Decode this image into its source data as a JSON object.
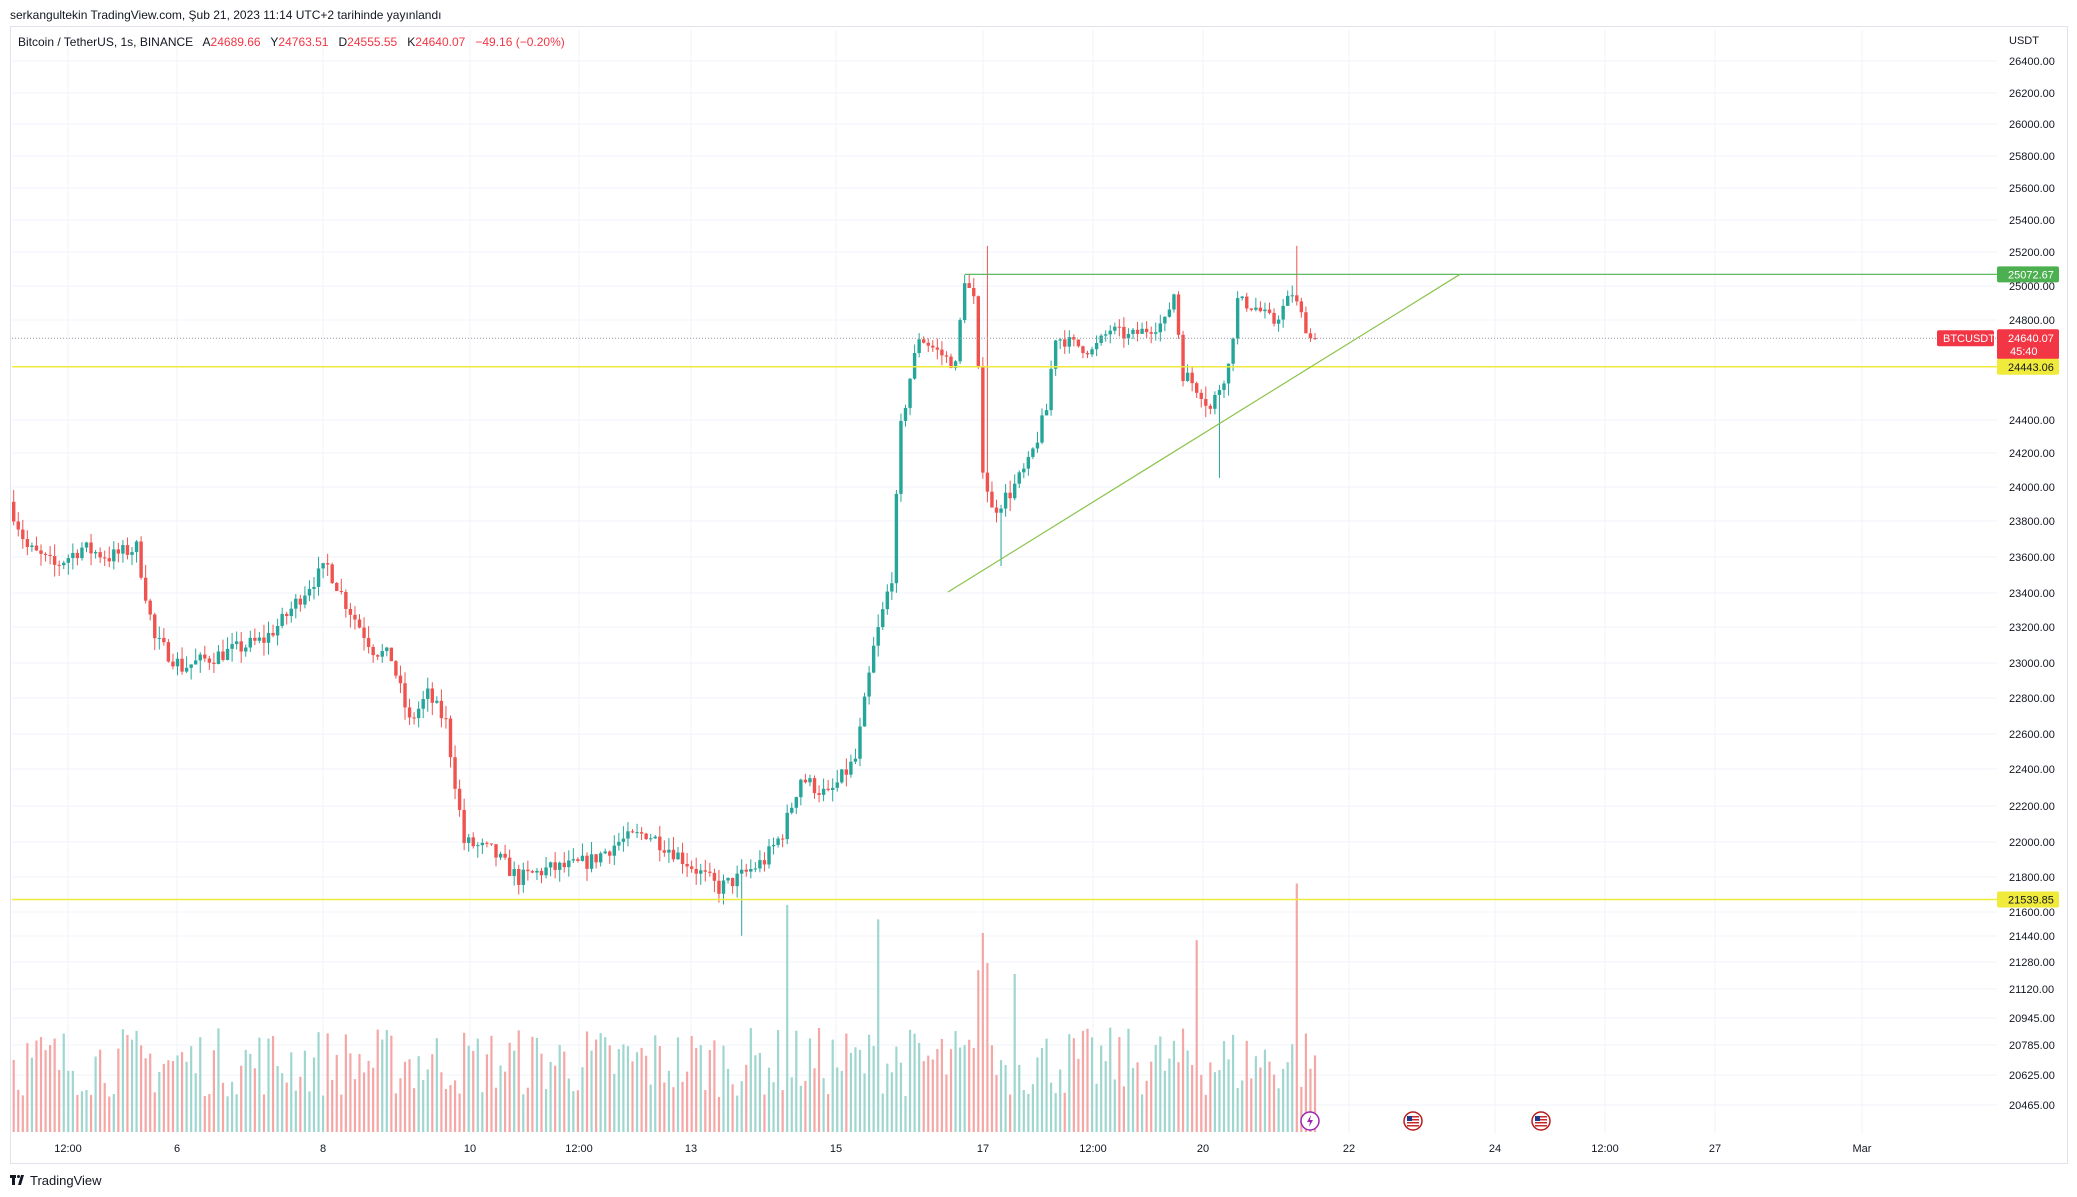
{
  "header": {
    "publish_line": "serkangultekin TradingView.com, Şub 21, 2023 11:14 UTC+2 tarihinde yayınlandı"
  },
  "legend": {
    "symbol": "Bitcoin / TetherUS, 1s, BINANCE",
    "open_label": "A",
    "open": "24689.66",
    "high_label": "Y",
    "high": "24763.51",
    "low_label": "D",
    "low": "24555.55",
    "close_label": "K",
    "close": "24640.07",
    "change": "−49.16 (−0.20%)"
  },
  "colors": {
    "up": "#26a69a",
    "down": "#ef5350",
    "volume_up": "#9fd6cf",
    "volume_down": "#f4a7a5",
    "resistance": "#4caf50",
    "trendline": "#8bc34a",
    "support": "#f0ea3a",
    "grid": "#f0f3fa",
    "price_tag": "#f23645"
  },
  "price_axis": {
    "currency": "USDT",
    "ticks": [
      "26400.00",
      "26200.00",
      "26000.00",
      "25800.00",
      "25600.00",
      "25400.00",
      "25200.00",
      "25000.00",
      "24800.00",
      "24400.00",
      "24200.00",
      "24000.00",
      "23800.00",
      "23600.00",
      "23400.00",
      "23200.00",
      "23000.00",
      "22800.00",
      "22600.00",
      "22400.00",
      "22200.00",
      "22000.00",
      "21800.00",
      "21600.00",
      "21440.00",
      "21280.00",
      "21120.00",
      "20945.00",
      "20785.00",
      "20625.00",
      "20465.00"
    ]
  },
  "time_axis": {
    "labels": [
      "12:00",
      "6",
      "8",
      "10",
      "12:00",
      "13",
      "15",
      "17",
      "12:00",
      "20",
      "22",
      "24",
      "12:00",
      "27",
      "Mar"
    ]
  },
  "price_tags": {
    "resistance": "25072.67",
    "symbol_tag": "BTCUSDT",
    "current": "24640.07",
    "countdown": "45:40",
    "support_upper": "24443.06",
    "support_lower": "21539.85"
  },
  "events": [
    {
      "icon": "lightning-icon"
    },
    {
      "icon": "us-flag-icon"
    },
    {
      "icon": "us-flag-icon"
    }
  ],
  "branding": {
    "logo_text": "TradingView"
  },
  "chart_data": {
    "type": "candlestick",
    "symbol": "BTCUSDT",
    "interval": "1h",
    "y_range": [
      20465,
      26400
    ],
    "anchor_points": [
      [
        0,
        23700
      ],
      [
        4,
        23450
      ],
      [
        10,
        23350
      ],
      [
        16,
        23450
      ],
      [
        22,
        23400
      ],
      [
        28,
        23450
      ],
      [
        32,
        22950
      ],
      [
        38,
        22800
      ],
      [
        44,
        22850
      ],
      [
        50,
        22900
      ],
      [
        56,
        22950
      ],
      [
        60,
        23050
      ],
      [
        66,
        23250
      ],
      [
        70,
        23350
      ],
      [
        74,
        23150
      ],
      [
        80,
        22900
      ],
      [
        84,
        22850
      ],
      [
        88,
        22500
      ],
      [
        92,
        22650
      ],
      [
        96,
        22500
      ],
      [
        100,
        21850
      ],
      [
        106,
        21800
      ],
      [
        112,
        21650
      ],
      [
        118,
        21700
      ],
      [
        124,
        21720
      ],
      [
        128,
        21750
      ],
      [
        134,
        21850
      ],
      [
        140,
        21900
      ],
      [
        146,
        21800
      ],
      [
        150,
        21720
      ],
      [
        156,
        21600
      ],
      [
        160,
        21650
      ],
      [
        166,
        21750
      ],
      [
        170,
        21900
      ],
      [
        174,
        22200
      ],
      [
        180,
        22100
      ],
      [
        186,
        22300
      ],
      [
        190,
        22900
      ],
      [
        194,
        23300
      ],
      [
        196,
        24100
      ],
      [
        200,
        24650
      ],
      [
        204,
        24550
      ],
      [
        208,
        24450
      ],
      [
        210,
        25050
      ],
      [
        212,
        24900
      ],
      [
        214,
        23900
      ],
      [
        216,
        23650
      ],
      [
        220,
        23750
      ],
      [
        224,
        23900
      ],
      [
        228,
        24200
      ],
      [
        230,
        24650
      ],
      [
        234,
        24600
      ],
      [
        238,
        24550
      ],
      [
        242,
        24700
      ],
      [
        246,
        24650
      ],
      [
        250,
        24700
      ],
      [
        254,
        24750
      ],
      [
        256,
        24950
      ],
      [
        258,
        24400
      ],
      [
        262,
        24300
      ],
      [
        264,
        24200
      ],
      [
        268,
        24450
      ],
      [
        270,
        24900
      ],
      [
        274,
        24850
      ],
      [
        278,
        24750
      ],
      [
        282,
        24950
      ],
      [
        286,
        24640
      ]
    ],
    "volume_range": [
      0,
      1
    ],
    "resistance_level": 25072.67,
    "support_levels": [
      24443.06,
      21539.85
    ],
    "trendline": {
      "from": [
        206,
        23230
      ],
      "to": [
        322,
        25072.67
      ]
    },
    "last_price": 24640.07
  }
}
